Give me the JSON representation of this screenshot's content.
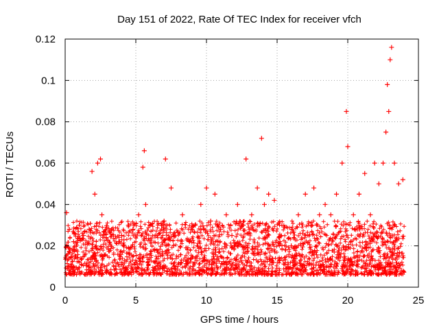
{
  "chart_data": {
    "type": "scatter",
    "title": "Day 151 of 2022, Rate Of TEC Index for receiver vfch",
    "xlabel": "GPS time / hours",
    "ylabel": "ROTI / TECUs",
    "xlim": [
      0,
      25
    ],
    "ylim": [
      0,
      0.12
    ],
    "x_ticks": [
      "0",
      "5",
      "10",
      "15",
      "20",
      "25"
    ],
    "y_ticks": [
      "0",
      "0.02",
      "0.04",
      "0.06",
      "0.08",
      "0.1",
      "0.12"
    ],
    "x_tick_values": [
      0,
      5,
      10,
      15,
      20,
      25
    ],
    "y_tick_values": [
      0,
      0.02,
      0.04,
      0.06,
      0.08,
      0.1,
      0.12
    ],
    "grid": true,
    "marker": "+",
    "color": "#ff0000",
    "series": [
      {
        "name": "ROTI",
        "x": [
          0.1,
          0.3,
          0.6,
          1.0,
          1.3,
          1.7,
          1.9,
          2.1,
          2.3,
          2.5,
          2.6,
          2.9,
          3.3,
          3.8,
          4.0,
          4.5,
          4.8,
          5.2,
          5.5,
          5.6,
          5.7,
          6.0,
          6.5,
          7.0,
          7.1,
          7.2,
          7.5,
          7.8,
          8.3,
          8.8,
          9.2,
          9.6,
          9.8,
          10.0,
          10.3,
          10.6,
          11.0,
          11.4,
          11.8,
          12.2,
          12.6,
          12.8,
          13.2,
          13.6,
          13.9,
          14.1,
          14.4,
          14.8,
          15.2,
          15.6,
          16.0,
          16.5,
          17.0,
          17.4,
          17.6,
          18.0,
          18.4,
          18.8,
          19.2,
          19.6,
          19.9,
          20.0,
          20.4,
          20.8,
          21.2,
          21.6,
          21.9,
          22.2,
          22.5,
          22.7,
          22.8,
          22.9,
          23.0,
          23.1,
          23.3,
          23.6,
          23.9
        ],
        "y": [
          0.036,
          0.028,
          0.022,
          0.03,
          0.025,
          0.028,
          0.056,
          0.045,
          0.06,
          0.062,
          0.035,
          0.024,
          0.028,
          0.022,
          0.025,
          0.03,
          0.028,
          0.035,
          0.058,
          0.066,
          0.04,
          0.03,
          0.025,
          0.032,
          0.062,
          0.03,
          0.048,
          0.025,
          0.035,
          0.022,
          0.03,
          0.04,
          0.028,
          0.048,
          0.032,
          0.045,
          0.028,
          0.035,
          0.025,
          0.04,
          0.03,
          0.062,
          0.035,
          0.048,
          0.072,
          0.04,
          0.045,
          0.042,
          0.022,
          0.018,
          0.02,
          0.035,
          0.045,
          0.03,
          0.048,
          0.035,
          0.04,
          0.035,
          0.045,
          0.06,
          0.085,
          0.068,
          0.035,
          0.045,
          0.055,
          0.035,
          0.06,
          0.05,
          0.06,
          0.075,
          0.098,
          0.085,
          0.11,
          0.116,
          0.06,
          0.05,
          0.052
        ]
      }
    ]
  }
}
